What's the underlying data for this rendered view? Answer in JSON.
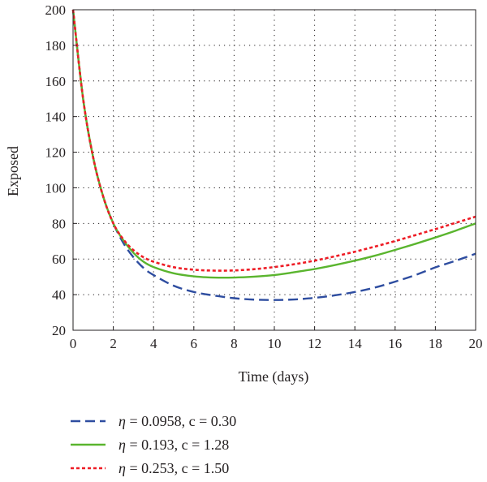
{
  "chart_data": {
    "type": "line",
    "xlabel": "Time (days)",
    "ylabel": "Exposed",
    "xlim": [
      0,
      20
    ],
    "ylim": [
      20,
      200
    ],
    "xticks": [
      0,
      2,
      4,
      6,
      8,
      10,
      12,
      14,
      16,
      18,
      20
    ],
    "yticks": [
      20,
      40,
      60,
      80,
      100,
      120,
      140,
      160,
      180,
      200
    ],
    "grid": true,
    "legend_position": "below",
    "series": [
      {
        "name_symbol": "η",
        "name_rest": " = 0.0958, c = 0.30",
        "color": "#2e4da0",
        "style": "dashed",
        "x": [
          0,
          0.5,
          1,
          1.5,
          2,
          2.5,
          3,
          3.5,
          4,
          5,
          6,
          7,
          8,
          9,
          10,
          11,
          12,
          13,
          14,
          15,
          16,
          17,
          18,
          19,
          20
        ],
        "y": [
          200,
          150,
          117,
          95,
          80,
          69,
          61,
          55,
          51,
          45,
          41.5,
          39.5,
          38,
          37.2,
          37,
          37.3,
          38.2,
          39.6,
          41.5,
          44,
          47.3,
          51,
          55.3,
          59,
          63
        ]
      },
      {
        "name_symbol": "η",
        "name_rest": " = 0.193, c = 1.28",
        "color": "#5ab52e",
        "style": "solid",
        "x": [
          0,
          0.5,
          1,
          1.5,
          2,
          2.5,
          3,
          3.5,
          4,
          5,
          6,
          7,
          8,
          9,
          10,
          11,
          12,
          13,
          14,
          15,
          16,
          17,
          18,
          19,
          20
        ],
        "y": [
          200,
          150,
          117,
          95,
          80,
          70.5,
          63.5,
          58.5,
          55.5,
          52,
          50.3,
          49.6,
          49.6,
          50.1,
          51,
          52.6,
          54.4,
          56.6,
          59.1,
          61.9,
          65.1,
          68.5,
          72.1,
          75.9,
          80
        ]
      },
      {
        "name_symbol": "η",
        "name_rest": " = 0.253, c = 1.50",
        "color": "#ee1c25",
        "style": "dotted",
        "x": [
          0,
          0.5,
          1,
          1.5,
          2,
          2.5,
          3,
          3.5,
          4,
          5,
          6,
          7,
          8,
          9,
          10,
          11,
          12,
          13,
          14,
          15,
          16,
          17,
          18,
          19,
          20
        ],
        "y": [
          200,
          150,
          117,
          95,
          80,
          71,
          65,
          61,
          58.5,
          55.4,
          54,
          53.5,
          53.6,
          54.3,
          55.5,
          57.1,
          59.1,
          61.5,
          64.1,
          67,
          70.1,
          73.4,
          76.8,
          80.3,
          83.8
        ]
      }
    ]
  }
}
